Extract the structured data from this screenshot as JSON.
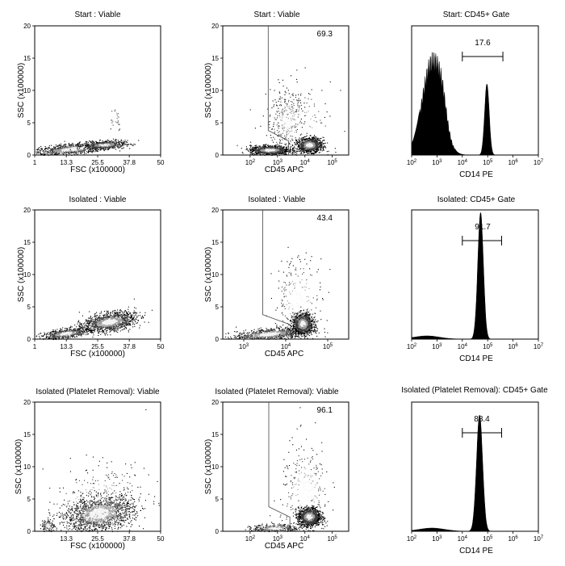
{
  "figure": {
    "rows": [
      {
        "name": "start",
        "panels": [
          {
            "title": "Start : Viable",
            "xlabel": "FSC (x100000)",
            "ylabel": "SSC (x100000)"
          },
          {
            "title": "Start : Viable",
            "xlabel": "CD45 APC",
            "ylabel": "SSC (x100000)",
            "gate_value": "69.3"
          },
          {
            "title": "Start: CD45+ Gate",
            "xlabel": "CD14 PE",
            "gate_value": "17.6"
          }
        ]
      },
      {
        "name": "isolated",
        "panels": [
          {
            "title": "Isolated : Viable",
            "xlabel": "FSC (x100000)",
            "ylabel": "SSC (x100000)"
          },
          {
            "title": "Isolated : Viable",
            "xlabel": "CD45 APC",
            "ylabel": "SSC (x100000)",
            "gate_value": "43.4"
          },
          {
            "title": "Isolated: CD45+ Gate",
            "xlabel": "CD14 PE",
            "gate_value": "91.7"
          }
        ]
      },
      {
        "name": "platelet-removal",
        "panels": [
          {
            "title": "Isolated (Platelet Removal): Viable",
            "xlabel": "FSC (x100000)",
            "ylabel": "SSC (x100000)"
          },
          {
            "title": "Isolated (Platelet Removal): Viable",
            "xlabel": "CD45 APC",
            "ylabel": "SSC (x100000)",
            "gate_value": "96.1"
          },
          {
            "title": "Isolated (Platelet Removal): CD45+ Gate",
            "xlabel": "CD14 PE",
            "gate_value": "88.4"
          }
        ]
      }
    ]
  },
  "chart_data": [
    {
      "type": "scatter",
      "panel": "start-fsc-ssc",
      "title": "Start : Viable",
      "xlabel": "FSC (x100000)",
      "ylabel": "SSC (x100000)",
      "x_ticks": [
        "1",
        "13.3",
        "25.5",
        "37.8",
        "50"
      ],
      "y_ticks": [
        "0",
        "5",
        "10",
        "15",
        "20"
      ],
      "xlim": [
        1,
        50
      ],
      "ylim": [
        0,
        20
      ],
      "populations": [
        {
          "x": 16,
          "y": 1.0,
          "sx": 8,
          "sy": 0.4,
          "n": 1200,
          "tilt": 0.04
        },
        {
          "x": 28,
          "y": 1.6,
          "sx": 4,
          "sy": 0.3,
          "n": 500,
          "tilt": 0.02
        },
        {
          "x": 32,
          "y": 5.8,
          "sx": 1.4,
          "sy": 1.0,
          "n": 35,
          "tilt": 0
        }
      ]
    },
    {
      "type": "scatter",
      "panel": "start-cd45-ssc",
      "title": "Start : Viable",
      "xlabel": "CD45 APC",
      "ylabel": "SSC (x100000)",
      "x_scale": "log",
      "x_ticks": [
        "10^2",
        "10^3",
        "10^4",
        "10^5"
      ],
      "y_ticks": [
        "0",
        "5",
        "10",
        "15",
        "20"
      ],
      "xlim": [
        1,
        5.6
      ],
      "ylim": [
        0,
        20
      ],
      "gate_value": 69.3,
      "gate_polygon": [
        [
          2.66,
          20
        ],
        [
          2.66,
          3.8
        ],
        [
          3.4,
          2.2
        ],
        [
          3.4,
          0
        ]
      ],
      "populations": [
        {
          "x": 2.7,
          "y": 0.8,
          "sx": 0.35,
          "sy": 0.35,
          "n": 1100,
          "tilt": 0
        },
        {
          "x": 4.15,
          "y": 1.6,
          "sx": 0.22,
          "sy": 0.55,
          "n": 1300,
          "tilt": 0
        },
        {
          "x": 3.35,
          "y": 5.5,
          "sx": 0.3,
          "sy": 2.2,
          "n": 300,
          "tilt": 0
        },
        {
          "x": 3.8,
          "y": 4.0,
          "sx": 0.6,
          "sy": 3.5,
          "n": 200,
          "tilt": 0
        }
      ]
    },
    {
      "type": "area",
      "panel": "start-cd14-histogram",
      "title": "Start: CD45+ Gate",
      "xlabel": "CD14 PE",
      "x_scale": "log",
      "x_ticks": [
        "10^2",
        "10^3",
        "10^4",
        "10^5",
        "10^6",
        "10^7"
      ],
      "xlim": [
        2,
        7
      ],
      "gate_value": 17.6,
      "gate_range": [
        4.0,
        5.6
      ],
      "peaks": [
        {
          "center": 2.8,
          "sigma": 0.38,
          "height": 0.78
        },
        {
          "center": 3.2,
          "sigma": 0.18,
          "height": 0.18
        },
        {
          "center": 4.97,
          "sigma": 0.09,
          "height": 0.55
        }
      ]
    },
    {
      "type": "scatter",
      "panel": "isolated-fsc-ssc",
      "title": "Isolated : Viable",
      "xlabel": "FSC (x100000)",
      "ylabel": "SSC (x100000)",
      "x_ticks": [
        "1",
        "13.3",
        "25.5",
        "37.8",
        "50"
      ],
      "y_ticks": [
        "0",
        "5",
        "10",
        "15",
        "20"
      ],
      "xlim": [
        1,
        50
      ],
      "ylim": [
        0,
        20
      ],
      "populations": [
        {
          "x": 13,
          "y": 0.9,
          "sx": 4.5,
          "sy": 0.35,
          "n": 700,
          "tilt": 0.05
        },
        {
          "x": 30,
          "y": 2.7,
          "sx": 5,
          "sy": 0.7,
          "n": 1400,
          "tilt": 0.06
        }
      ]
    },
    {
      "type": "scatter",
      "panel": "isolated-cd45-ssc",
      "title": "Isolated : Viable",
      "xlabel": "CD45 APC",
      "ylabel": "SSC (x100000)",
      "x_scale": "log",
      "x_ticks": [
        "10^3",
        "10^4",
        "10^5"
      ],
      "y_ticks": [
        "0",
        "5",
        "10",
        "15",
        "20"
      ],
      "xlim": [
        2.5,
        5.5
      ],
      "ylim": [
        0,
        20
      ],
      "gate_value": 43.4,
      "gate_polygon": [
        [
          3.45,
          20
        ],
        [
          3.45,
          3.8
        ],
        [
          4.12,
          2.2
        ],
        [
          4.12,
          0
        ]
      ],
      "populations": [
        {
          "x": 3.6,
          "y": 0.8,
          "sx": 0.4,
          "sy": 0.45,
          "n": 900,
          "tilt": 0.6
        },
        {
          "x": 4.4,
          "y": 2.4,
          "sx": 0.12,
          "sy": 0.8,
          "n": 1200,
          "tilt": 0
        },
        {
          "x": 4.3,
          "y": 6.0,
          "sx": 0.3,
          "sy": 3.5,
          "n": 250,
          "tilt": 0
        }
      ]
    },
    {
      "type": "area",
      "panel": "isolated-cd14-histogram",
      "title": "Isolated: CD45+ Gate",
      "xlabel": "CD14 PE",
      "x_scale": "log",
      "x_ticks": [
        "10^2",
        "10^3",
        "10^4",
        "10^5",
        "10^6",
        "10^7"
      ],
      "xlim": [
        2,
        7
      ],
      "gate_value": 91.7,
      "gate_range": [
        4.0,
        5.55
      ],
      "peaks": [
        {
          "center": 2.6,
          "sigma": 0.5,
          "height": 0.025
        },
        {
          "center": 4.72,
          "sigma": 0.11,
          "height": 0.98
        }
      ]
    },
    {
      "type": "scatter",
      "panel": "platelet-removal-fsc-ssc",
      "title": "Isolated (Platelet Removal): Viable",
      "xlabel": "FSC (x100000)",
      "ylabel": "SSC (x100000)",
      "x_ticks": [
        "13.3",
        "25.5",
        "37.8",
        "50"
      ],
      "y_ticks": [
        "0",
        "5",
        "10",
        "15",
        "20"
      ],
      "xlim": [
        1,
        50
      ],
      "ylim": [
        0,
        20
      ],
      "populations": [
        {
          "x": 6,
          "y": 0.9,
          "sx": 1.2,
          "sy": 0.5,
          "n": 150,
          "tilt": 0
        },
        {
          "x": 26,
          "y": 2.8,
          "sx": 6.5,
          "sy": 1.3,
          "n": 1800,
          "tilt": 0.05
        },
        {
          "x": 25,
          "y": 4.5,
          "sx": 10,
          "sy": 3.0,
          "n": 300,
          "tilt": 0.08
        }
      ]
    },
    {
      "type": "scatter",
      "panel": "platelet-removal-cd45-ssc",
      "title": "Isolated (Platelet Removal): Viable",
      "xlabel": "CD45 APC",
      "ylabel": "SSC (x100000)",
      "x_scale": "log",
      "x_ticks": [
        "10^2",
        "10^3",
        "10^4",
        "10^5"
      ],
      "y_ticks": [
        "0",
        "5",
        "10",
        "15",
        "20"
      ],
      "xlim": [
        1,
        5.6
      ],
      "ylim": [
        0,
        20
      ],
      "gate_value": 96.1,
      "gate_polygon": [
        [
          2.68,
          20
        ],
        [
          2.68,
          3.8
        ],
        [
          3.45,
          2.2
        ],
        [
          3.45,
          0
        ]
      ],
      "populations": [
        {
          "x": 2.9,
          "y": 0.5,
          "sx": 0.4,
          "sy": 0.3,
          "n": 350,
          "tilt": 0
        },
        {
          "x": 4.15,
          "y": 2.3,
          "sx": 0.2,
          "sy": 0.7,
          "n": 1500,
          "tilt": 0
        },
        {
          "x": 4.0,
          "y": 6.0,
          "sx": 0.45,
          "sy": 4.0,
          "n": 280,
          "tilt": 0
        }
      ]
    },
    {
      "type": "area",
      "panel": "platelet-removal-cd14-histogram",
      "title": "Isolated (Platelet Removal): CD45+ Gate",
      "xlabel": "CD14 PE",
      "x_scale": "log",
      "x_ticks": [
        "10^2",
        "10^3",
        "10^4",
        "10^5",
        "10^6",
        "10^7"
      ],
      "xlim": [
        2,
        7
      ],
      "gate_value": 88.4,
      "gate_range": [
        4.0,
        5.55
      ],
      "peaks": [
        {
          "center": 2.8,
          "sigma": 0.5,
          "height": 0.025
        },
        {
          "center": 4.68,
          "sigma": 0.12,
          "height": 0.9
        }
      ]
    }
  ]
}
